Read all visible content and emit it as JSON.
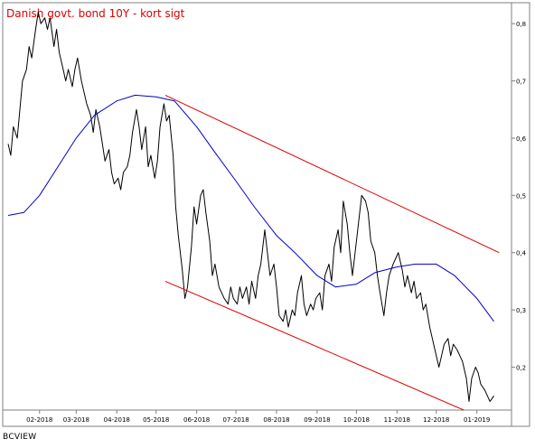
{
  "chart_data": {
    "type": "line",
    "title": "Danish govt. bond 10Y - kort sigt",
    "source": "BCVIEW",
    "xlabel": "",
    "ylabel": "",
    "x_ticks": [
      "02-2018",
      "03-2018",
      "04-2018",
      "05-2018",
      "06-2018",
      "07-2018",
      "08-2018",
      "09-2018",
      "10-2018",
      "11-2018",
      "12-2018",
      "01-2019"
    ],
    "y_ticks": [
      "0,2",
      "0,3",
      "0,4",
      "0,5",
      "0,6",
      "0,7",
      "0,8"
    ],
    "ylim": [
      0.125,
      0.835
    ],
    "xlim": [
      "2018-01-08",
      "2019-01-24"
    ],
    "grid": false,
    "colors": {
      "price": "#000000",
      "moving_average": "#0000cc",
      "channel": "#dd0000",
      "title": "#dd0000",
      "frame": "#808080"
    },
    "series": [
      {
        "style": "price",
        "points": [
          [
            "2018-01-08",
            0.59
          ],
          [
            "2018-01-10",
            0.57
          ],
          [
            "2018-01-12",
            0.62
          ],
          [
            "2018-01-15",
            0.6
          ],
          [
            "2018-01-17",
            0.65
          ],
          [
            "2018-01-19",
            0.7
          ],
          [
            "2018-01-22",
            0.72
          ],
          [
            "2018-01-24",
            0.76
          ],
          [
            "2018-01-26",
            0.74
          ],
          [
            "2018-01-29",
            0.79
          ],
          [
            "2018-01-31",
            0.82
          ],
          [
            "2018-02-02",
            0.8
          ],
          [
            "2018-02-05",
            0.81
          ],
          [
            "2018-02-07",
            0.79
          ],
          [
            "2018-02-09",
            0.81
          ],
          [
            "2018-02-12",
            0.76
          ],
          [
            "2018-02-14",
            0.79
          ],
          [
            "2018-02-16",
            0.75
          ],
          [
            "2018-02-19",
            0.72
          ],
          [
            "2018-02-21",
            0.7
          ],
          [
            "2018-02-23",
            0.72
          ],
          [
            "2018-02-26",
            0.69
          ],
          [
            "2018-02-28",
            0.72
          ],
          [
            "2018-03-02",
            0.74
          ],
          [
            "2018-03-05",
            0.7
          ],
          [
            "2018-03-07",
            0.68
          ],
          [
            "2018-03-09",
            0.66
          ],
          [
            "2018-03-12",
            0.64
          ],
          [
            "2018-03-14",
            0.61
          ],
          [
            "2018-03-16",
            0.65
          ],
          [
            "2018-03-19",
            0.62
          ],
          [
            "2018-03-21",
            0.59
          ],
          [
            "2018-03-23",
            0.56
          ],
          [
            "2018-03-26",
            0.58
          ],
          [
            "2018-03-28",
            0.54
          ],
          [
            "2018-03-30",
            0.52
          ],
          [
            "2018-04-02",
            0.53
          ],
          [
            "2018-04-04",
            0.51
          ],
          [
            "2018-04-06",
            0.54
          ],
          [
            "2018-04-09",
            0.55
          ],
          [
            "2018-04-11",
            0.57
          ],
          [
            "2018-04-13",
            0.61
          ],
          [
            "2018-04-16",
            0.65
          ],
          [
            "2018-04-18",
            0.62
          ],
          [
            "2018-04-20",
            0.58
          ],
          [
            "2018-04-23",
            0.62
          ],
          [
            "2018-04-25",
            0.55
          ],
          [
            "2018-04-27",
            0.57
          ],
          [
            "2018-04-30",
            0.53
          ],
          [
            "2018-05-02",
            0.56
          ],
          [
            "2018-05-04",
            0.62
          ],
          [
            "2018-05-07",
            0.66
          ],
          [
            "2018-05-09",
            0.63
          ],
          [
            "2018-05-11",
            0.64
          ],
          [
            "2018-05-14",
            0.57
          ],
          [
            "2018-05-16",
            0.48
          ],
          [
            "2018-05-18",
            0.43
          ],
          [
            "2018-05-21",
            0.37
          ],
          [
            "2018-05-23",
            0.32
          ],
          [
            "2018-05-25",
            0.34
          ],
          [
            "2018-05-28",
            0.41
          ],
          [
            "2018-05-30",
            0.48
          ],
          [
            "2018-06-01",
            0.45
          ],
          [
            "2018-06-04",
            0.5
          ],
          [
            "2018-06-06",
            0.51
          ],
          [
            "2018-06-08",
            0.47
          ],
          [
            "2018-06-11",
            0.42
          ],
          [
            "2018-06-13",
            0.36
          ],
          [
            "2018-06-15",
            0.38
          ],
          [
            "2018-06-18",
            0.34
          ],
          [
            "2018-06-20",
            0.33
          ],
          [
            "2018-06-22",
            0.32
          ],
          [
            "2018-06-25",
            0.31
          ],
          [
            "2018-06-27",
            0.34
          ],
          [
            "2018-06-29",
            0.32
          ],
          [
            "2018-07-02",
            0.31
          ],
          [
            "2018-07-04",
            0.34
          ],
          [
            "2018-07-06",
            0.32
          ],
          [
            "2018-07-09",
            0.34
          ],
          [
            "2018-07-11",
            0.31
          ],
          [
            "2018-07-13",
            0.35
          ],
          [
            "2018-07-16",
            0.32
          ],
          [
            "2018-07-18",
            0.36
          ],
          [
            "2018-07-20",
            0.38
          ],
          [
            "2018-07-23",
            0.44
          ],
          [
            "2018-07-25",
            0.4
          ],
          [
            "2018-07-27",
            0.36
          ],
          [
            "2018-07-30",
            0.38
          ],
          [
            "2018-08-01",
            0.34
          ],
          [
            "2018-08-03",
            0.29
          ],
          [
            "2018-08-06",
            0.28
          ],
          [
            "2018-08-08",
            0.3
          ],
          [
            "2018-08-10",
            0.27
          ],
          [
            "2018-08-13",
            0.3
          ],
          [
            "2018-08-15",
            0.29
          ],
          [
            "2018-08-17",
            0.33
          ],
          [
            "2018-08-20",
            0.36
          ],
          [
            "2018-08-22",
            0.31
          ],
          [
            "2018-08-24",
            0.29
          ],
          [
            "2018-08-27",
            0.31
          ],
          [
            "2018-08-29",
            0.3
          ],
          [
            "2018-08-31",
            0.32
          ],
          [
            "2018-09-03",
            0.33
          ],
          [
            "2018-09-05",
            0.3
          ],
          [
            "2018-09-07",
            0.36
          ],
          [
            "2018-09-10",
            0.38
          ],
          [
            "2018-09-12",
            0.35
          ],
          [
            "2018-09-14",
            0.41
          ],
          [
            "2018-09-17",
            0.44
          ],
          [
            "2018-09-19",
            0.4
          ],
          [
            "2018-09-21",
            0.49
          ],
          [
            "2018-09-24",
            0.45
          ],
          [
            "2018-09-26",
            0.4
          ],
          [
            "2018-09-28",
            0.36
          ],
          [
            "2018-10-01",
            0.42
          ],
          [
            "2018-10-03",
            0.46
          ],
          [
            "2018-10-05",
            0.5
          ],
          [
            "2018-10-08",
            0.49
          ],
          [
            "2018-10-10",
            0.47
          ],
          [
            "2018-10-12",
            0.42
          ],
          [
            "2018-10-15",
            0.4
          ],
          [
            "2018-10-17",
            0.36
          ],
          [
            "2018-10-19",
            0.33
          ],
          [
            "2018-10-22",
            0.29
          ],
          [
            "2018-10-24",
            0.33
          ],
          [
            "2018-10-26",
            0.36
          ],
          [
            "2018-10-29",
            0.38
          ],
          [
            "2018-10-31",
            0.39
          ],
          [
            "2018-11-02",
            0.4
          ],
          [
            "2018-11-05",
            0.37
          ],
          [
            "2018-11-07",
            0.34
          ],
          [
            "2018-11-09",
            0.36
          ],
          [
            "2018-11-12",
            0.33
          ],
          [
            "2018-11-14",
            0.35
          ],
          [
            "2018-11-16",
            0.32
          ],
          [
            "2018-11-19",
            0.33
          ],
          [
            "2018-11-21",
            0.3
          ],
          [
            "2018-11-23",
            0.31
          ],
          [
            "2018-11-26",
            0.27
          ],
          [
            "2018-11-28",
            0.25
          ],
          [
            "2018-11-30",
            0.23
          ],
          [
            "2018-12-03",
            0.2
          ],
          [
            "2018-12-05",
            0.22
          ],
          [
            "2018-12-07",
            0.24
          ],
          [
            "2018-12-10",
            0.25
          ],
          [
            "2018-12-12",
            0.22
          ],
          [
            "2018-12-14",
            0.24
          ],
          [
            "2018-12-17",
            0.23
          ],
          [
            "2018-12-19",
            0.22
          ],
          [
            "2018-12-21",
            0.21
          ],
          [
            "2018-12-24",
            0.18
          ],
          [
            "2018-12-26",
            0.14
          ],
          [
            "2018-12-28",
            0.18
          ],
          [
            "2018-12-31",
            0.2
          ],
          [
            "2019-01-02",
            0.19
          ],
          [
            "2019-01-04",
            0.17
          ],
          [
            "2019-01-07",
            0.16
          ],
          [
            "2019-01-09",
            0.15
          ],
          [
            "2019-01-11",
            0.14
          ],
          [
            "2019-01-14",
            0.15
          ]
        ]
      },
      {
        "style": "moving_average",
        "points": [
          [
            "2018-01-08",
            0.465
          ],
          [
            "2018-01-20",
            0.47
          ],
          [
            "2018-02-01",
            0.5
          ],
          [
            "2018-02-15",
            0.55
          ],
          [
            "2018-03-01",
            0.6
          ],
          [
            "2018-03-15",
            0.64
          ],
          [
            "2018-04-01",
            0.665
          ],
          [
            "2018-04-15",
            0.675
          ],
          [
            "2018-05-01",
            0.672
          ],
          [
            "2018-05-15",
            0.665
          ],
          [
            "2018-06-01",
            0.62
          ],
          [
            "2018-06-15",
            0.575
          ],
          [
            "2018-07-01",
            0.525
          ],
          [
            "2018-07-15",
            0.48
          ],
          [
            "2018-08-01",
            0.43
          ],
          [
            "2018-08-15",
            0.4
          ],
          [
            "2018-09-01",
            0.36
          ],
          [
            "2018-09-15",
            0.34
          ],
          [
            "2018-10-01",
            0.345
          ],
          [
            "2018-10-15",
            0.365
          ],
          [
            "2018-11-01",
            0.375
          ],
          [
            "2018-11-15",
            0.38
          ],
          [
            "2018-12-01",
            0.38
          ],
          [
            "2018-12-15",
            0.36
          ],
          [
            "2019-01-01",
            0.32
          ],
          [
            "2019-01-14",
            0.28
          ]
        ]
      },
      {
        "style": "channel",
        "points": [
          [
            "2018-05-08",
            0.675
          ],
          [
            "2019-01-18",
            0.4
          ]
        ]
      },
      {
        "style": "channel",
        "points": [
          [
            "2018-05-08",
            0.35
          ],
          [
            "2018-12-22",
            0.125
          ]
        ]
      }
    ]
  }
}
